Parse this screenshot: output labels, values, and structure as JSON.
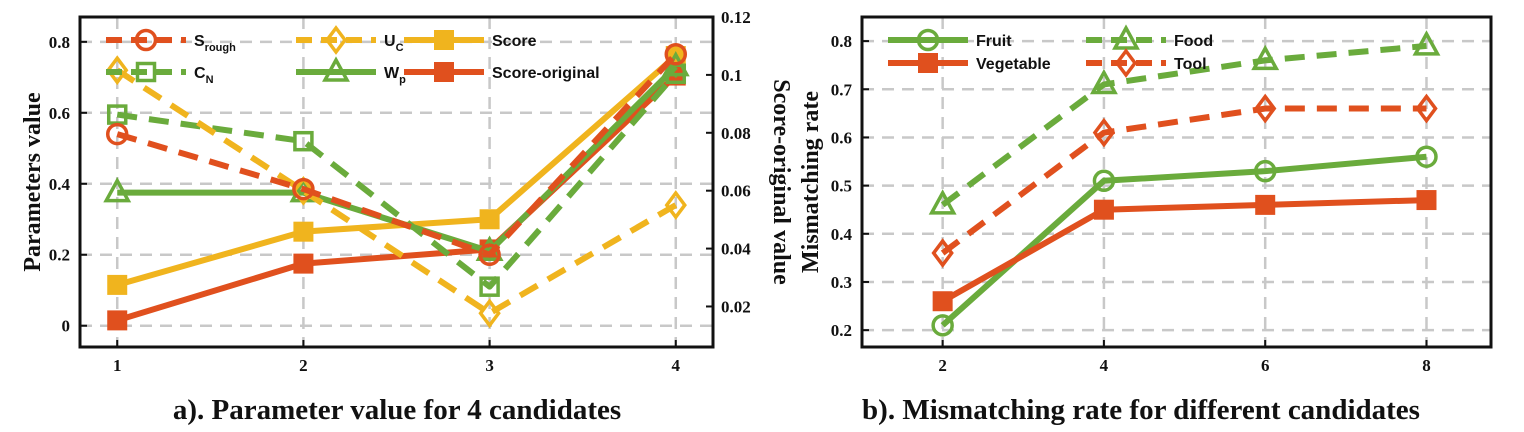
{
  "colors": {
    "orange": "#e0501e",
    "gold": "#f0b41e",
    "green": "#6aab3c",
    "grid": "#c8c8c8"
  },
  "chart_data": [
    {
      "type": "line",
      "title": "a). Parameter value for 4 candidates",
      "xlabel": "",
      "ylabel": "Parameters value",
      "y2label": "Score-original value",
      "x": [
        1,
        2,
        3,
        4
      ],
      "x_ticks": [
        "1",
        "2",
        "3",
        "4"
      ],
      "xlim": [
        0.8,
        4.2
      ],
      "ylim": [
        -0.06,
        0.87
      ],
      "y_ticks": [
        "0",
        "0.2",
        "0.4",
        "0.6",
        "0.8"
      ],
      "y2lim": [
        0.006,
        0.12
      ],
      "y2_ticks": [
        "0.02",
        "0.04",
        "0.06",
        "0.08",
        "0.1",
        "0.12"
      ],
      "legend": [
        {
          "main": "S",
          "sub": "rough"
        },
        {
          "main": "U",
          "sub": "C"
        },
        {
          "main": "Score",
          "sub": ""
        },
        {
          "main": "C",
          "sub": "N"
        },
        {
          "main": "W",
          "sub": "p"
        },
        {
          "main": "Score-original",
          "sub": ""
        }
      ],
      "series": [
        {
          "name": "Score",
          "axis": "left",
          "color": "gold",
          "marker": "square",
          "dashed": false,
          "values": [
            0.115,
            0.265,
            0.3,
            0.76
          ]
        },
        {
          "name": "Score-original",
          "axis": "left",
          "color": "orange",
          "marker": "square",
          "dashed": false,
          "values": [
            0.015,
            0.175,
            0.215,
            0.705
          ]
        },
        {
          "name": "W_p",
          "axis": "left",
          "color": "green",
          "marker": "triangle",
          "dashed": false,
          "values": [
            0.375,
            0.375,
            0.21,
            0.73
          ]
        },
        {
          "name": "C_N",
          "axis": "left",
          "color": "green",
          "marker": "hollow-square",
          "dashed": true,
          "values": [
            0.595,
            0.52,
            0.11,
            0.71
          ]
        },
        {
          "name": "U_C",
          "axis": "left",
          "color": "gold",
          "marker": "diamond",
          "dashed": true,
          "values": [
            0.72,
            0.38,
            0.035,
            0.34
          ]
        },
        {
          "name": "S_rough",
          "axis": "left",
          "color": "orange",
          "marker": "circle",
          "dashed": true,
          "values": [
            0.54,
            0.385,
            0.2,
            0.765
          ]
        }
      ]
    },
    {
      "type": "line",
      "title": "b). Mismatching rate for different candidates",
      "xlabel": "",
      "ylabel": "Mismatching rate",
      "x": [
        2,
        4,
        6,
        8
      ],
      "x_ticks": [
        "2",
        "4",
        "6",
        "8"
      ],
      "xlim": [
        1.0,
        8.8
      ],
      "ylim": [
        0.165,
        0.85
      ],
      "y_ticks": [
        "0.2",
        "0.3",
        "0.4",
        "0.5",
        "0.6",
        "0.7",
        "0.8"
      ],
      "legend": [
        {
          "main": "Fruit",
          "sub": ""
        },
        {
          "main": "Food",
          "sub": ""
        },
        {
          "main": "Vegetable",
          "sub": ""
        },
        {
          "main": "Tool",
          "sub": ""
        }
      ],
      "series": [
        {
          "name": "Fruit",
          "color": "green",
          "marker": "circle",
          "dashed": false,
          "values": [
            0.21,
            0.51,
            0.53,
            0.56
          ]
        },
        {
          "name": "Vegetable",
          "color": "orange",
          "marker": "square",
          "dashed": false,
          "values": [
            0.26,
            0.45,
            0.46,
            0.47
          ]
        },
        {
          "name": "Food",
          "color": "green",
          "marker": "triangle",
          "dashed": true,
          "values": [
            0.46,
            0.71,
            0.76,
            0.79
          ]
        },
        {
          "name": "Tool",
          "color": "orange",
          "marker": "diamond",
          "dashed": true,
          "values": [
            0.36,
            0.61,
            0.66,
            0.66
          ]
        }
      ]
    }
  ]
}
